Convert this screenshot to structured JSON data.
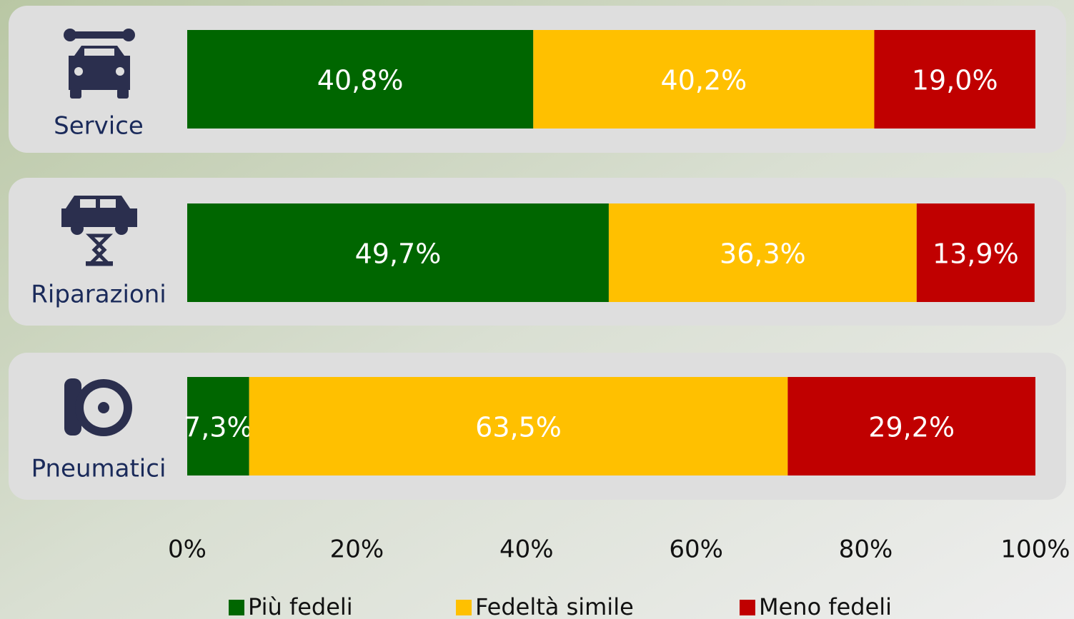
{
  "chart_data": {
    "type": "stacked-bar-horizontal",
    "categories": [
      "Service",
      "Riparazioni",
      "Pneumatici"
    ],
    "series": [
      {
        "name": "Più fedeli",
        "color": "#006600",
        "values": [
          40.8,
          49.7,
          7.3
        ],
        "value_labels": [
          "40,8%",
          "49,7%",
          "7,3%"
        ]
      },
      {
        "name": "Fedeltà simile",
        "color": "#ffc000",
        "values": [
          40.2,
          36.3,
          63.5
        ],
        "value_labels": [
          "40,2%",
          "36,3%",
          "63,5%"
        ]
      },
      {
        "name": "Meno fedeli",
        "color": "#c00000",
        "values": [
          19.0,
          13.9,
          29.2
        ],
        "value_labels": [
          "19,0%",
          "13,9%",
          "29,2%"
        ]
      }
    ],
    "xlim": [
      0,
      100
    ],
    "xticks": [
      {
        "value": 0,
        "label": "0%"
      },
      {
        "value": 20,
        "label": "20%"
      },
      {
        "value": 40,
        "label": "40%"
      },
      {
        "value": 60,
        "label": "60%"
      },
      {
        "value": 80,
        "label": "80%"
      },
      {
        "value": 100,
        "label": "100%"
      }
    ]
  }
}
